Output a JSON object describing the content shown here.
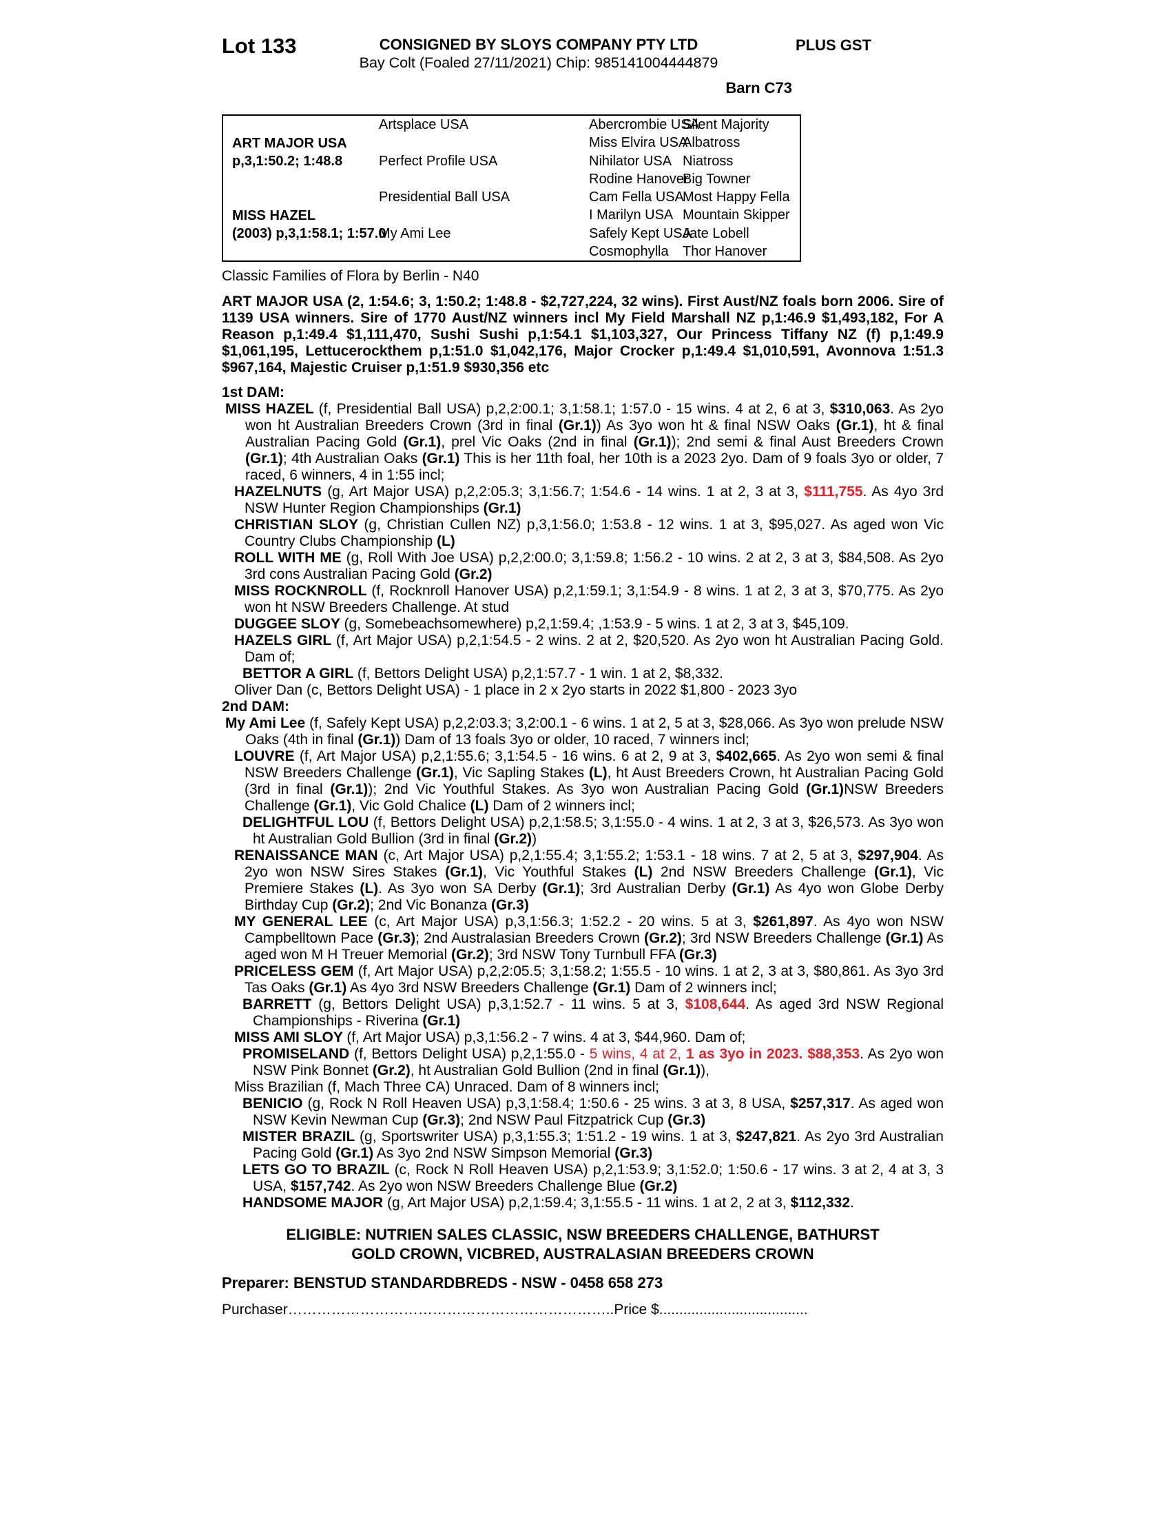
{
  "colors": {
    "highlight_red": "#ec1c24"
  },
  "header": {
    "lot": "Lot 133",
    "consignor": "CONSIGNED BY SLOYS COMPANY PTY LTD",
    "foal_description": "Bay Colt (Foaled 27/11/2021) Chip: 985141004444879",
    "gst": "PLUS GST",
    "barn": "Barn C73"
  },
  "pedigree_table": {
    "sire": {
      "name": "ART MAJOR USA",
      "record": "p,3,1:50.2; 1:48.8"
    },
    "dam": {
      "name": "MISS HAZEL",
      "record": "(2003) p,3,1:58.1; 1:57.0"
    },
    "gen2": [
      "Artsplace USA",
      "Perfect Profile USA",
      "Presidential Ball USA",
      "My Ami Lee"
    ],
    "gen3": [
      "Abercrombie USA",
      "Miss Elvira USA",
      "Nihilator USA",
      "Rodine Hanover",
      "Cam Fella USA",
      "I Marilyn USA",
      "Safely Kept USA",
      "Cosmophylla"
    ],
    "gen4": [
      "Silent Majority",
      "Albatross",
      "Niatross",
      "Big Towner",
      "Most Happy Fella",
      "Mountain Skipper",
      "Jate Lobell",
      "Thor Hanover"
    ]
  },
  "family_note": "Classic Families of Flora by Berlin - N40",
  "sire_summary": "ART MAJOR USA (2, 1:54.6; 3, 1:50.2; 1:48.8 - $2,727,224, 32 wins). First Aust/NZ foals born 2006. Sire of 1139 USA winners. Sire of 1770 Aust/NZ winners incl My Field Marshall NZ p,1:46.9 $1,493,182, For A Reason p,1:49.4 $1,111,470, Sushi Sushi p,1:54.1 $1,103,327, Our Princess Tiffany NZ (f) p,1:49.9 $1,061,195, Lettucerockthem p,1:51.0 $1,042,176, Major Crocker p,1:49.4 $1,010,591, Avonnova 1:51.3 $967,164, Majestic Cruiser p,1:51.9 $930,356 etc",
  "sections": [
    {
      "heading": "1st DAM:",
      "entries": [
        {
          "lvl": "lvl1",
          "segs": [
            {
              "t": "MISS HAZEL ",
              "c": "b"
            },
            {
              "t": "(f, Presidential Ball USA) p,2,2:00.1; 3,1:58.1; 1:57.0 - 15 wins. 4 at 2, 6 at 3, "
            },
            {
              "t": "$310,063",
              "c": "b"
            },
            {
              "t": ". As 2yo won ht Australian Breeders Crown (3rd in final "
            },
            {
              "t": "(Gr.1)",
              "c": "b"
            },
            {
              "t": ") As 3yo won ht & final NSW Oaks "
            },
            {
              "t": "(Gr.1)",
              "c": "b"
            },
            {
              "t": ", ht & final Australian Pacing Gold "
            },
            {
              "t": "(Gr.1)",
              "c": "b"
            },
            {
              "t": ", prel Vic Oaks (2nd in final "
            },
            {
              "t": "(Gr.1)",
              "c": "b"
            },
            {
              "t": "); 2nd semi & final Aust Breeders Crown "
            },
            {
              "t": "(Gr.1)",
              "c": "b"
            },
            {
              "t": "; 4th Australian Oaks "
            },
            {
              "t": "(Gr.1)",
              "c": "b"
            },
            {
              "t": " This is her 11th foal, her 10th is a 2023 2yo. Dam of 9 foals 3yo or older, 7 raced, 6 winners, 4 in 1:55 incl;"
            }
          ]
        },
        {
          "lvl": "lvl2",
          "segs": [
            {
              "t": "HAZELNUTS ",
              "c": "b"
            },
            {
              "t": "(g, Art Major USA) p,2,2:05.3; 3,1:56.7; 1:54.6 - 14 wins. 1 at 2, 3 at 3, "
            },
            {
              "t": "$111,755",
              "c": "br"
            },
            {
              "t": ". As 4yo 3rd NSW Hunter Region Championships "
            },
            {
              "t": "(Gr.1)",
              "c": "b"
            }
          ]
        },
        {
          "lvl": "lvl2",
          "segs": [
            {
              "t": "CHRISTIAN SLOY ",
              "c": "b"
            },
            {
              "t": "(g, Christian Cullen NZ) p,3,1:56.0; 1:53.8 - 12 wins. 1 at 3, $95,027. As aged won Vic Country Clubs Championship "
            },
            {
              "t": "(L)",
              "c": "b"
            }
          ]
        },
        {
          "lvl": "lvl2",
          "segs": [
            {
              "t": "ROLL WITH ME ",
              "c": "b"
            },
            {
              "t": "(g, Roll With Joe USA) p,2,2:00.0; 3,1:59.8; 1:56.2 - 10 wins. 2 at 2, 3 at 3, $84,508. As 2yo 3rd cons Australian Pacing Gold "
            },
            {
              "t": "(Gr.2)",
              "c": "b"
            }
          ]
        },
        {
          "lvl": "lvl2",
          "segs": [
            {
              "t": "MISS ROCKNROLL ",
              "c": "b"
            },
            {
              "t": "(f, Rocknroll Hanover USA) p,2,1:59.1; 3,1:54.9 - 8 wins. 1 at 2, 3 at 3, $70,775. As 2yo won ht NSW Breeders Challenge. At stud"
            }
          ]
        },
        {
          "lvl": "lvl2",
          "segs": [
            {
              "t": "DUGGEE SLOY ",
              "c": "b"
            },
            {
              "t": "(g, Somebeachsomewhere) p,2,1:59.4; ,1:53.9 - 5 wins. 1 at 2, 3 at 3, $45,109."
            }
          ]
        },
        {
          "lvl": "lvl2",
          "segs": [
            {
              "t": "HAZELS GIRL ",
              "c": "b"
            },
            {
              "t": "(f, Art Major USA) p,2,1:54.5 - 2 wins. 2 at 2, $20,520. As 2yo won ht Australian Pacing Gold. Dam of;"
            }
          ]
        },
        {
          "lvl": "lvl3",
          "segs": [
            {
              "t": "BETTOR A GIRL ",
              "c": "b"
            },
            {
              "t": "(f, Bettors Delight USA) p,2,1:57.7 - 1 win. 1 at 2, $8,332."
            }
          ]
        },
        {
          "lvl": "lvl2",
          "segs": [
            {
              "t": "Oliver Dan (c, Bettors Delight USA) - 1 place in 2 x 2yo starts in 2022 $1,800 - 2023 3yo"
            }
          ]
        }
      ]
    },
    {
      "heading": "2nd DAM:",
      "entries": [
        {
          "lvl": "lvl1",
          "segs": [
            {
              "t": "My Ami Lee ",
              "c": "b"
            },
            {
              "t": "(f, Safely Kept USA) p,2,2:03.3; 3,2:00.1 - 6 wins. 1 at 2, 5 at 3, $28,066. As 3yo won prelude NSW Oaks (4th in final "
            },
            {
              "t": "(Gr.1)",
              "c": "b"
            },
            {
              "t": ") Dam of 13 foals 3yo or older, 10 raced, 7 winners incl;"
            }
          ]
        },
        {
          "lvl": "lvl2",
          "segs": [
            {
              "t": "LOUVRE ",
              "c": "b"
            },
            {
              "t": "(f, Art Major USA) p,2,1:55.6; 3,1:54.5 - 16 wins. 6 at 2, 9 at 3, "
            },
            {
              "t": "$402,665",
              "c": "b"
            },
            {
              "t": ". As 2yo won semi & final NSW Breeders Challenge "
            },
            {
              "t": "(Gr.1)",
              "c": "b"
            },
            {
              "t": ", Vic Sapling Stakes "
            },
            {
              "t": "(L)",
              "c": "b"
            },
            {
              "t": ", ht Aust Breeders Crown, ht Australian Pacing Gold (3rd in final "
            },
            {
              "t": "(Gr.1)",
              "c": "b"
            },
            {
              "t": "); 2nd Vic Youthful Stakes. As 3yo won Australian Pacing Gold "
            },
            {
              "t": "(Gr.1)",
              "c": "b"
            },
            {
              "t": "NSW Breeders Challenge "
            },
            {
              "t": "(Gr.1)",
              "c": "b"
            },
            {
              "t": ", Vic Gold Chalice "
            },
            {
              "t": "(L)",
              "c": "b"
            },
            {
              "t": " Dam of 2 winners incl;"
            }
          ]
        },
        {
          "lvl": "lvl3",
          "segs": [
            {
              "t": "DELIGHTFUL LOU ",
              "c": "b"
            },
            {
              "t": "(f, Bettors Delight USA) p,2,1:58.5; 3,1:55.0 - 4 wins. 1 at 2, 3 at 3, $26,573. As 3yo won ht Australian Gold Bullion (3rd in final "
            },
            {
              "t": "(Gr.2)",
              "c": "b"
            },
            {
              "t": ")"
            }
          ]
        },
        {
          "lvl": "lvl2",
          "segs": [
            {
              "t": "RENAISSANCE MAN ",
              "c": "b"
            },
            {
              "t": "(c, Art Major USA) p,2,1:55.4; 3,1:55.2; 1:53.1 - 18 wins. 7 at 2, 5 at 3, "
            },
            {
              "t": "$297,904",
              "c": "b"
            },
            {
              "t": ". As 2yo won NSW Sires Stakes "
            },
            {
              "t": "(Gr.1)",
              "c": "b"
            },
            {
              "t": ", Vic Youthful Stakes "
            },
            {
              "t": "(L)",
              "c": "b"
            },
            {
              "t": " 2nd NSW Breeders Challenge "
            },
            {
              "t": "(Gr.1)",
              "c": "b"
            },
            {
              "t": ", Vic Premiere Stakes "
            },
            {
              "t": "(L)",
              "c": "b"
            },
            {
              "t": ". As 3yo won SA Derby "
            },
            {
              "t": "(Gr.1)",
              "c": "b"
            },
            {
              "t": "; 3rd Australian Derby "
            },
            {
              "t": "(Gr.1)",
              "c": "b"
            },
            {
              "t": " As 4yo won Globe Derby Birthday Cup "
            },
            {
              "t": "(Gr.2)",
              "c": "b"
            },
            {
              "t": "; 2nd Vic Bonanza "
            },
            {
              "t": "(Gr.3)",
              "c": "b"
            }
          ]
        },
        {
          "lvl": "lvl2",
          "segs": [
            {
              "t": "MY GENERAL LEE ",
              "c": "b"
            },
            {
              "t": "(c, Art Major USA) p,3,1:56.3; 1:52.2 - 20 wins. 5 at 3, "
            },
            {
              "t": "$261,897",
              "c": "b"
            },
            {
              "t": ". As 4yo won NSW Campbelltown Pace "
            },
            {
              "t": "(Gr.3)",
              "c": "b"
            },
            {
              "t": "; 2nd Australasian Breeders Crown "
            },
            {
              "t": "(Gr.2)",
              "c": "b"
            },
            {
              "t": "; 3rd NSW Breeders Challenge "
            },
            {
              "t": "(Gr.1)",
              "c": "b"
            },
            {
              "t": " As aged won M H Treuer Memorial "
            },
            {
              "t": "(Gr.2)",
              "c": "b"
            },
            {
              "t": "; 3rd NSW Tony Turnbull FFA "
            },
            {
              "t": "(Gr.3)",
              "c": "b"
            }
          ]
        },
        {
          "lvl": "lvl2",
          "segs": [
            {
              "t": "PRICELESS GEM ",
              "c": "b"
            },
            {
              "t": "(f, Art Major USA) p,2,2:05.5; 3,1:58.2; 1:55.5 - 10 wins. 1 at 2, 3 at 3, $80,861. As 3yo 3rd Tas Oaks "
            },
            {
              "t": "(Gr.1)",
              "c": "b"
            },
            {
              "t": " As 4yo 3rd NSW Breeders Challenge "
            },
            {
              "t": "(Gr.1)",
              "c": "b"
            },
            {
              "t": " Dam of 2 winners incl;"
            }
          ]
        },
        {
          "lvl": "lvl3",
          "segs": [
            {
              "t": "BARRETT ",
              "c": "b"
            },
            {
              "t": "(g, Bettors Delight USA) p,3,1:52.7 - 11 wins. 5 at 3, "
            },
            {
              "t": "$108,644",
              "c": "br"
            },
            {
              "t": ". As aged 3rd NSW Regional Championships - Riverina "
            },
            {
              "t": "(Gr.1)",
              "c": "b"
            }
          ]
        },
        {
          "lvl": "lvl2",
          "segs": [
            {
              "t": "MISS AMI SLOY ",
              "c": "b"
            },
            {
              "t": "(f, Art Major USA) p,3,1:56.2 - 7 wins. 4 at 3, $44,960. Dam of;"
            }
          ]
        },
        {
          "lvl": "lvl3",
          "segs": [
            {
              "t": "PROMISELAND ",
              "c": "b"
            },
            {
              "t": "(f, Bettors Delight USA) p,2,1:55.0 - "
            },
            {
              "t": "5 wins, 4 at 2, ",
              "c": "r"
            },
            {
              "t": "1 as 3yo in 2023.",
              "c": "br"
            },
            {
              "t": " "
            },
            {
              "t": "$88,353",
              "c": "br"
            },
            {
              "t": ". As 2yo won NSW Pink Bonnet "
            },
            {
              "t": "(Gr.2)",
              "c": "b"
            },
            {
              "t": ", ht Australian Gold Bullion (2nd in final "
            },
            {
              "t": "(Gr.1)",
              "c": "b"
            },
            {
              "t": "),"
            }
          ]
        },
        {
          "lvl": "lvl2",
          "segs": [
            {
              "t": "Miss Brazilian (f, Mach Three CA) Unraced. Dam of 8 winners incl;"
            }
          ]
        },
        {
          "lvl": "lvl3",
          "segs": [
            {
              "t": "BENICIO ",
              "c": "b"
            },
            {
              "t": "(g, Rock N Roll Heaven USA) p,3,1:58.4; 1:50.6 - 25 wins. 3 at 3, 8 USA, "
            },
            {
              "t": "$257,317",
              "c": "b"
            },
            {
              "t": ". As aged won NSW Kevin Newman Cup "
            },
            {
              "t": "(Gr.3)",
              "c": "b"
            },
            {
              "t": "; 2nd NSW Paul Fitzpatrick Cup "
            },
            {
              "t": "(Gr.3)",
              "c": "b"
            }
          ]
        },
        {
          "lvl": "lvl3",
          "segs": [
            {
              "t": "MISTER BRAZIL ",
              "c": "b"
            },
            {
              "t": "(g, Sportswriter USA) p,3,1:55.3; 1:51.2 - 19 wins. 1 at 3, "
            },
            {
              "t": "$247,821",
              "c": "b"
            },
            {
              "t": ". As 2yo 3rd Australian Pacing Gold "
            },
            {
              "t": "(Gr.1)",
              "c": "b"
            },
            {
              "t": " As 3yo 2nd NSW Simpson Memorial "
            },
            {
              "t": "(Gr.3)",
              "c": "b"
            }
          ]
        },
        {
          "lvl": "lvl3",
          "segs": [
            {
              "t": "LETS GO TO BRAZIL ",
              "c": "b"
            },
            {
              "t": "(c, Rock N Roll Heaven USA) p,2,1:53.9; 3,1:52.0; 1:50.6 - 17 wins. 3 at 2, 4 at 3, 3 USA, "
            },
            {
              "t": "$157,742",
              "c": "b"
            },
            {
              "t": ". As 2yo won NSW Breeders Challenge Blue "
            },
            {
              "t": "(Gr.2)",
              "c": "b"
            }
          ]
        },
        {
          "lvl": "lvl3",
          "segs": [
            {
              "t": "HANDSOME MAJOR ",
              "c": "b"
            },
            {
              "t": "(g, Art Major USA) p,2,1:59.4; 3,1:55.5 - 11 wins. 1 at 2, 2 at 3, "
            },
            {
              "t": "$112,332",
              "c": "b"
            },
            {
              "t": "."
            }
          ]
        }
      ]
    }
  ],
  "eligible": {
    "line1": "ELIGIBLE: NUTRIEN SALES CLASSIC, NSW BREEDERS CHALLENGE, BATHURST",
    "line2": "GOLD CROWN, VICBRED, AUSTRALASIAN BREEDERS CROWN"
  },
  "preparer_line": "Preparer: BENSTUD STANDARDBREDS - NSW - 0458 658 273",
  "purchaser_price_line": "Purchaser…………………………………………………………..Price $....................................."
}
